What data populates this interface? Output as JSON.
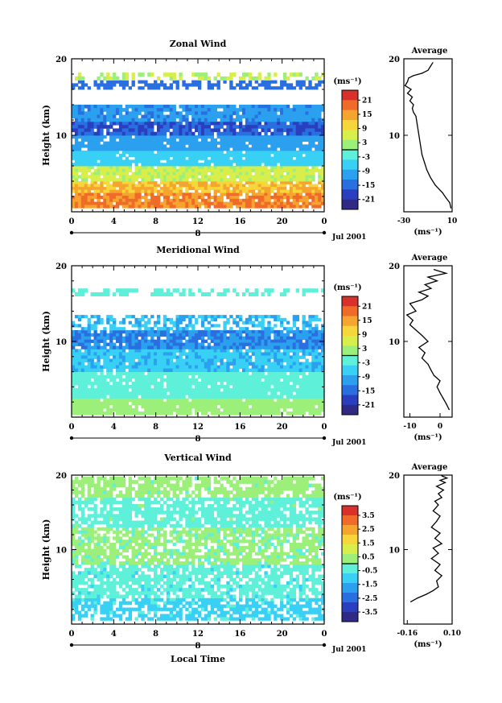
{
  "chart_data": [
    {
      "type": "heatmap",
      "title": "Zonal Wind",
      "ylabel": "Height (km)",
      "ylim": [
        0,
        20
      ],
      "yticks": [
        "20",
        "10"
      ],
      "xlim": [
        0,
        24
      ],
      "xticks": [
        "0",
        "4",
        "8",
        "12",
        "16",
        "20",
        "0"
      ],
      "day_label": "8",
      "date_label": "Jul 2001",
      "colorbar": {
        "unit": "(ms⁻¹)",
        "labels": [
          "21",
          "15",
          "9",
          "3",
          "-3",
          "-9",
          "-15",
          "-21"
        ],
        "range": [
          -24,
          24
        ]
      },
      "layers": [
        {
          "bottom": 0.5,
          "top": 2.5,
          "value": 16
        },
        {
          "bottom": 2.5,
          "top": 4.0,
          "value": 12
        },
        {
          "bottom": 4.0,
          "top": 6.0,
          "value": 5
        },
        {
          "bottom": 6.0,
          "top": 8.0,
          "value": -6
        },
        {
          "bottom": 8.0,
          "top": 10.0,
          "value": -10
        },
        {
          "bottom": 10.0,
          "top": 11.8,
          "value": -16
        },
        {
          "bottom": 11.8,
          "top": 14.0,
          "value": -11
        },
        {
          "bottom": 16.0,
          "top": 17.2,
          "value": -14
        },
        {
          "bottom": 17.2,
          "top": 18.2,
          "value": 4
        }
      ],
      "average": {
        "title": "Average",
        "xlabel": "(ms⁻¹)",
        "xlim": [
          -30,
          10
        ],
        "xticks": [
          "-30",
          "10"
        ],
        "yticks": [
          "20",
          "10"
        ],
        "x": [
          9,
          8,
          5,
          2,
          -4,
          -8,
          -11,
          -13,
          -15,
          -16,
          -17,
          -18,
          -19,
          -20,
          -22,
          -23,
          -22,
          -25,
          -23,
          -27,
          -24,
          -29,
          -27,
          -26,
          -22,
          -15,
          -10,
          -8,
          -6
        ],
        "y": [
          0.5,
          1.2,
          1.8,
          2.5,
          3.5,
          4.5,
          5.5,
          6.5,
          7.5,
          8.5,
          9.5,
          10.5,
          11.5,
          12.5,
          13.0,
          13.5,
          14.0,
          14.5,
          15.0,
          15.5,
          16.0,
          16.5,
          17.0,
          17.5,
          17.8,
          18.1,
          18.5,
          19.0,
          19.5
        ]
      }
    },
    {
      "type": "heatmap",
      "title": "Meridional Wind",
      "ylabel": "Height (km)",
      "ylim": [
        0,
        20
      ],
      "yticks": [
        "20",
        "10"
      ],
      "xlim": [
        0,
        24
      ],
      "xticks": [
        "0",
        "4",
        "8",
        "12",
        "16",
        "20",
        "0"
      ],
      "day_label": "8",
      "date_label": "Jul 2001",
      "colorbar": {
        "unit": "(ms⁻¹)",
        "labels": [
          "21",
          "15",
          "9",
          "3",
          "-3",
          "-9",
          "-15",
          "-21"
        ],
        "range": [
          -24,
          24
        ]
      },
      "layers": [
        {
          "bottom": 0.3,
          "top": 2.5,
          "value": 2
        },
        {
          "bottom": 2.5,
          "top": 6.0,
          "value": -2
        },
        {
          "bottom": 6.0,
          "top": 9.0,
          "value": -7
        },
        {
          "bottom": 9.0,
          "top": 11.5,
          "value": -12
        },
        {
          "bottom": 11.5,
          "top": 13.5,
          "value": -8
        },
        {
          "bottom": 16.0,
          "top": 17.0,
          "value": -2
        }
      ],
      "average": {
        "title": "Average",
        "xlabel": "(ms⁻¹)",
        "xlim": [
          -12,
          4
        ],
        "xticks": [
          "-10",
          "0"
        ],
        "yticks": [
          "20",
          "10"
        ],
        "x": [
          3,
          2,
          1,
          0,
          -1,
          0,
          -2,
          -3,
          -4,
          -6,
          -5,
          -7,
          -4,
          -6,
          -8,
          -10,
          -9,
          -11,
          -8,
          -9,
          -10,
          -6,
          -4,
          -7,
          -3,
          -5,
          -1,
          -4,
          2,
          -2
        ],
        "y": [
          1.0,
          1.8,
          2.5,
          3.2,
          4.0,
          4.8,
          5.5,
          6.2,
          7.0,
          7.8,
          8.5,
          9.2,
          10.0,
          10.8,
          11.5,
          12.2,
          12.8,
          13.5,
          14.0,
          14.5,
          15.0,
          15.5,
          16.0,
          16.5,
          17.0,
          17.5,
          18.0,
          18.5,
          19.0,
          19.5
        ]
      }
    },
    {
      "type": "heatmap",
      "title": "Vertical Wind",
      "ylabel": "Height (km)",
      "xlabel": "Local Time",
      "ylim": [
        0,
        20
      ],
      "yticks": [
        "20",
        "10"
      ],
      "xlim": [
        0,
        24
      ],
      "xticks": [
        "0",
        "4",
        "8",
        "12",
        "16",
        "20",
        "0"
      ],
      "day_label": "8",
      "date_label": "Jul 2001",
      "colorbar": {
        "unit": "(ms⁻¹)",
        "labels": [
          "3.5",
          "2.5",
          "1.5",
          "0.5",
          "-0.5",
          "-1.5",
          "-2.5",
          "-3.5"
        ],
        "range": [
          -4,
          4
        ]
      },
      "layers": [
        {
          "bottom": 0.5,
          "top": 3.5,
          "value": -0.9
        },
        {
          "bottom": 3.5,
          "top": 8.0,
          "value": -0.4
        },
        {
          "bottom": 8.0,
          "top": 13.0,
          "value": 0.2
        },
        {
          "bottom": 13.0,
          "top": 17.0,
          "value": -0.3
        },
        {
          "bottom": 17.0,
          "top": 19.8,
          "value": 0.3
        }
      ],
      "average": {
        "title": "Average",
        "xlabel": "(ms⁻¹)",
        "xlim": [
          -0.18,
          0.1
        ],
        "xticks": [
          "-0.16",
          "0.10"
        ],
        "yticks": [
          "20",
          "10"
        ],
        "x": [
          -0.14,
          -0.1,
          -0.05,
          -0.01,
          0.02,
          0.01,
          0.04,
          0.0,
          0.03,
          -0.02,
          0.02,
          -0.01,
          0.04,
          0.0,
          0.03,
          -0.02,
          0.01,
          0.03,
          -0.01,
          0.02,
          0.0,
          0.04,
          0.02,
          0.05,
          0.01,
          0.06,
          0.03,
          0.07,
          0.04
        ],
        "y": [
          3.0,
          3.5,
          4.0,
          4.5,
          5.0,
          5.8,
          6.5,
          7.2,
          8.0,
          8.8,
          9.5,
          10.2,
          10.8,
          11.5,
          12.2,
          13.0,
          13.8,
          14.5,
          15.2,
          16.0,
          16.5,
          17.0,
          17.5,
          18.0,
          18.5,
          19.0,
          19.3,
          19.6,
          19.9
        ]
      }
    }
  ]
}
